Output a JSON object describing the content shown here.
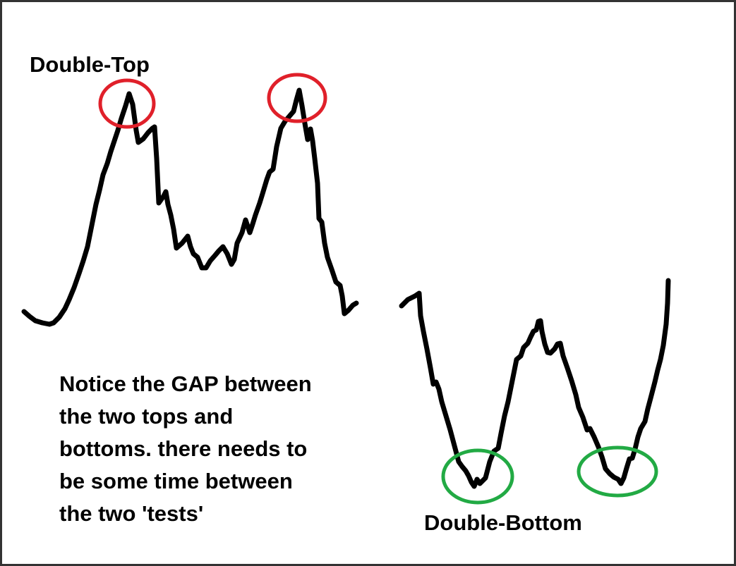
{
  "labels": {
    "double_top": "Double-Top",
    "double_bottom": "Double-Bottom"
  },
  "note_lines": [
    "Notice the GAP between",
    "the two tops and",
    "bottoms.  there needs to",
    "be some time between",
    "the two 'tests'"
  ],
  "colors": {
    "line": "#000000",
    "top_circle": "#e0202a",
    "bottom_circle": "#22aa44",
    "frame": "#333333"
  }
}
